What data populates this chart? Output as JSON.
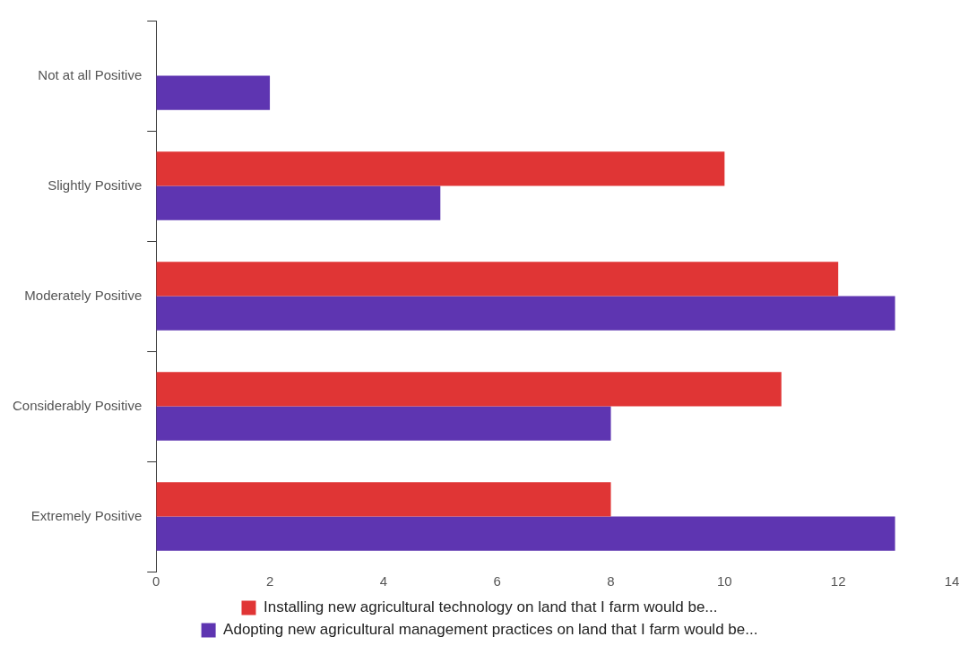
{
  "chart_data": {
    "type": "bar",
    "orientation": "horizontal",
    "categories": [
      "Not at all Positive",
      "Slightly Positive",
      "Moderately Positive",
      "Considerably Positive",
      "Extremely Positive"
    ],
    "series": [
      {
        "name": "Installing new agricultural technology on land that I farm would be...",
        "color": "#e03535",
        "values": [
          0,
          10,
          12,
          11,
          8
        ]
      },
      {
        "name": "Adopting new agricultural management practices on land that I farm would be...",
        "color": "#5e35b1",
        "values": [
          2,
          5,
          13,
          8,
          13
        ]
      }
    ],
    "xlim": [
      0,
      14
    ],
    "xticks": [
      0,
      2,
      4,
      6,
      8,
      10,
      12,
      14
    ],
    "grid": false,
    "legend": "bottom"
  }
}
